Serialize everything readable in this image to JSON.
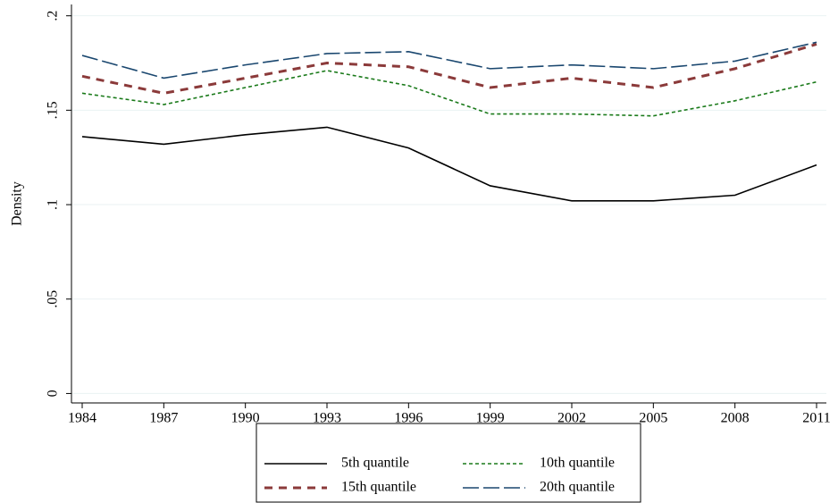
{
  "chart_data": {
    "type": "line",
    "y_label": "Density",
    "x": [
      1984,
      1987,
      1990,
      1993,
      1996,
      1999,
      2002,
      2005,
      2008,
      2011
    ],
    "xlim": [
      1984,
      2011
    ],
    "xticks": [
      1984,
      1987,
      1990,
      1993,
      1996,
      1999,
      2002,
      2005,
      2008,
      2011
    ],
    "ylim": [
      -0.005,
      0.206
    ],
    "yticks": [
      0,
      {
        "value": 0.05,
        "label": ".05"
      },
      {
        "value": 0.1,
        "label": ".1"
      },
      {
        "value": 0.15,
        "label": ".15"
      },
      {
        "value": 0.2,
        "label": ".2"
      }
    ],
    "grid": true,
    "legend": "bottom",
    "series": [
      {
        "name": "5th quantile",
        "color": "#000000",
        "dash": "none",
        "values": [
          0.136,
          0.132,
          0.137,
          0.141,
          0.13,
          0.11,
          0.102,
          0.102,
          0.105,
          0.121
        ]
      },
      {
        "name": "10th quantile",
        "color": "#1a7a1a",
        "dash": "4 3",
        "values": [
          0.159,
          0.153,
          0.162,
          0.171,
          0.163,
          0.148,
          0.148,
          0.147,
          0.155,
          0.165
        ]
      },
      {
        "name": "15th quantile",
        "color": "#8b3a3a",
        "dash": "9 7",
        "values": [
          0.168,
          0.159,
          0.167,
          0.175,
          0.173,
          0.162,
          0.167,
          0.162,
          0.172,
          0.185
        ]
      },
      {
        "name": "20th quantile",
        "color": "#1a476f",
        "dash": "18 5",
        "values": [
          0.179,
          0.167,
          0.174,
          0.18,
          0.181,
          0.172,
          0.174,
          0.172,
          0.176,
          0.186
        ]
      }
    ]
  }
}
